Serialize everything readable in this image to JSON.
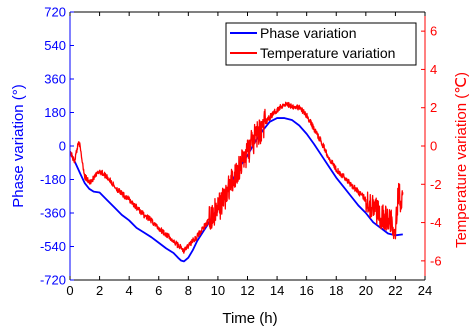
{
  "chart_data": {
    "type": "line",
    "xlabel": "Time (h)",
    "ylabel": "Phase variation (°)",
    "y2label": "Temperature variation (℃)",
    "xlim": [
      0,
      24
    ],
    "ylim": [
      -720,
      720
    ],
    "y2lim": [
      -7,
      7
    ],
    "xticks": [
      "0",
      "2",
      "4",
      "6",
      "8",
      "10",
      "12",
      "14",
      "16",
      "18",
      "20",
      "22",
      "24"
    ],
    "yticks": [
      "720",
      "540",
      "360",
      "180",
      "0",
      "-180",
      "-360",
      "-540",
      "-720"
    ],
    "y2ticks": [
      "6",
      "4",
      "2",
      "0",
      "-2",
      "-4",
      "-6"
    ],
    "grid": false,
    "legend": {
      "position": "top-right",
      "entries": [
        "Phase variation",
        "Temperature variation"
      ]
    },
    "colors": {
      "phase": "#0000ff",
      "temperature": "#ff0000",
      "axes": "#000000"
    },
    "series": [
      {
        "name": "Phase variation",
        "axis": "left",
        "color": "#0000ff",
        "x": [
          0,
          0.3,
          0.7,
          1,
          1.3,
          1.6,
          2,
          2.5,
          3,
          3.5,
          4,
          4.5,
          5,
          5.5,
          6,
          6.5,
          7,
          7.3,
          7.5,
          7.7,
          8,
          8.3,
          8.6,
          9,
          9.5,
          10,
          10.5,
          11,
          11.5,
          12,
          12.5,
          13,
          13.5,
          14,
          14.5,
          15,
          15.5,
          16,
          16.5,
          17,
          17.5,
          18,
          18.5,
          19,
          19.5,
          20,
          20.5,
          21,
          21.5,
          22,
          22.5
        ],
        "y": [
          -30,
          -80,
          -150,
          -200,
          -230,
          -245,
          -250,
          -290,
          -330,
          -370,
          -400,
          -440,
          -465,
          -490,
          -520,
          -550,
          -575,
          -600,
          -615,
          -620,
          -600,
          -560,
          -510,
          -460,
          -400,
          -330,
          -250,
          -180,
          -110,
          -50,
          20,
          80,
          130,
          150,
          150,
          140,
          110,
          65,
          10,
          -50,
          -110,
          -170,
          -220,
          -270,
          -320,
          -360,
          -410,
          -440,
          -470,
          -480,
          -475
        ]
      },
      {
        "name": "Temperature variation",
        "axis": "right",
        "color": "#ff0000",
        "x": [
          0,
          0.3,
          0.6,
          1,
          1.3,
          1.6,
          2,
          2.5,
          3,
          3.5,
          4,
          4.5,
          5,
          5.5,
          6,
          6.5,
          7,
          7.5,
          7.7,
          8,
          8.5,
          9,
          9.5,
          10,
          10.5,
          11,
          11.5,
          12,
          12.5,
          13,
          13.5,
          14,
          14.5,
          15,
          15.5,
          16,
          16.5,
          17,
          17.5,
          18,
          18.5,
          19,
          19.5,
          20,
          20.5,
          21,
          21.5,
          22,
          22.2,
          22.5
        ],
        "y": [
          -0.3,
          -0.8,
          0.3,
          -1.6,
          -1.9,
          -1.7,
          -1.3,
          -1.6,
          -2.1,
          -2.5,
          -2.8,
          -3.2,
          -3.6,
          -3.9,
          -4.3,
          -4.6,
          -5.0,
          -5.3,
          -5.5,
          -5.2,
          -4.8,
          -4.3,
          -3.8,
          -3.3,
          -2.6,
          -1.8,
          -1.0,
          -0.3,
          0.4,
          1.0,
          1.5,
          1.9,
          2.2,
          2.1,
          2.0,
          1.6,
          0.9,
          0.2,
          -0.6,
          -1.2,
          -1.6,
          -2.0,
          -2.4,
          -2.8,
          -3.2,
          -3.6,
          -3.9,
          -4.2,
          -2.5,
          -3.1
        ]
      }
    ]
  }
}
